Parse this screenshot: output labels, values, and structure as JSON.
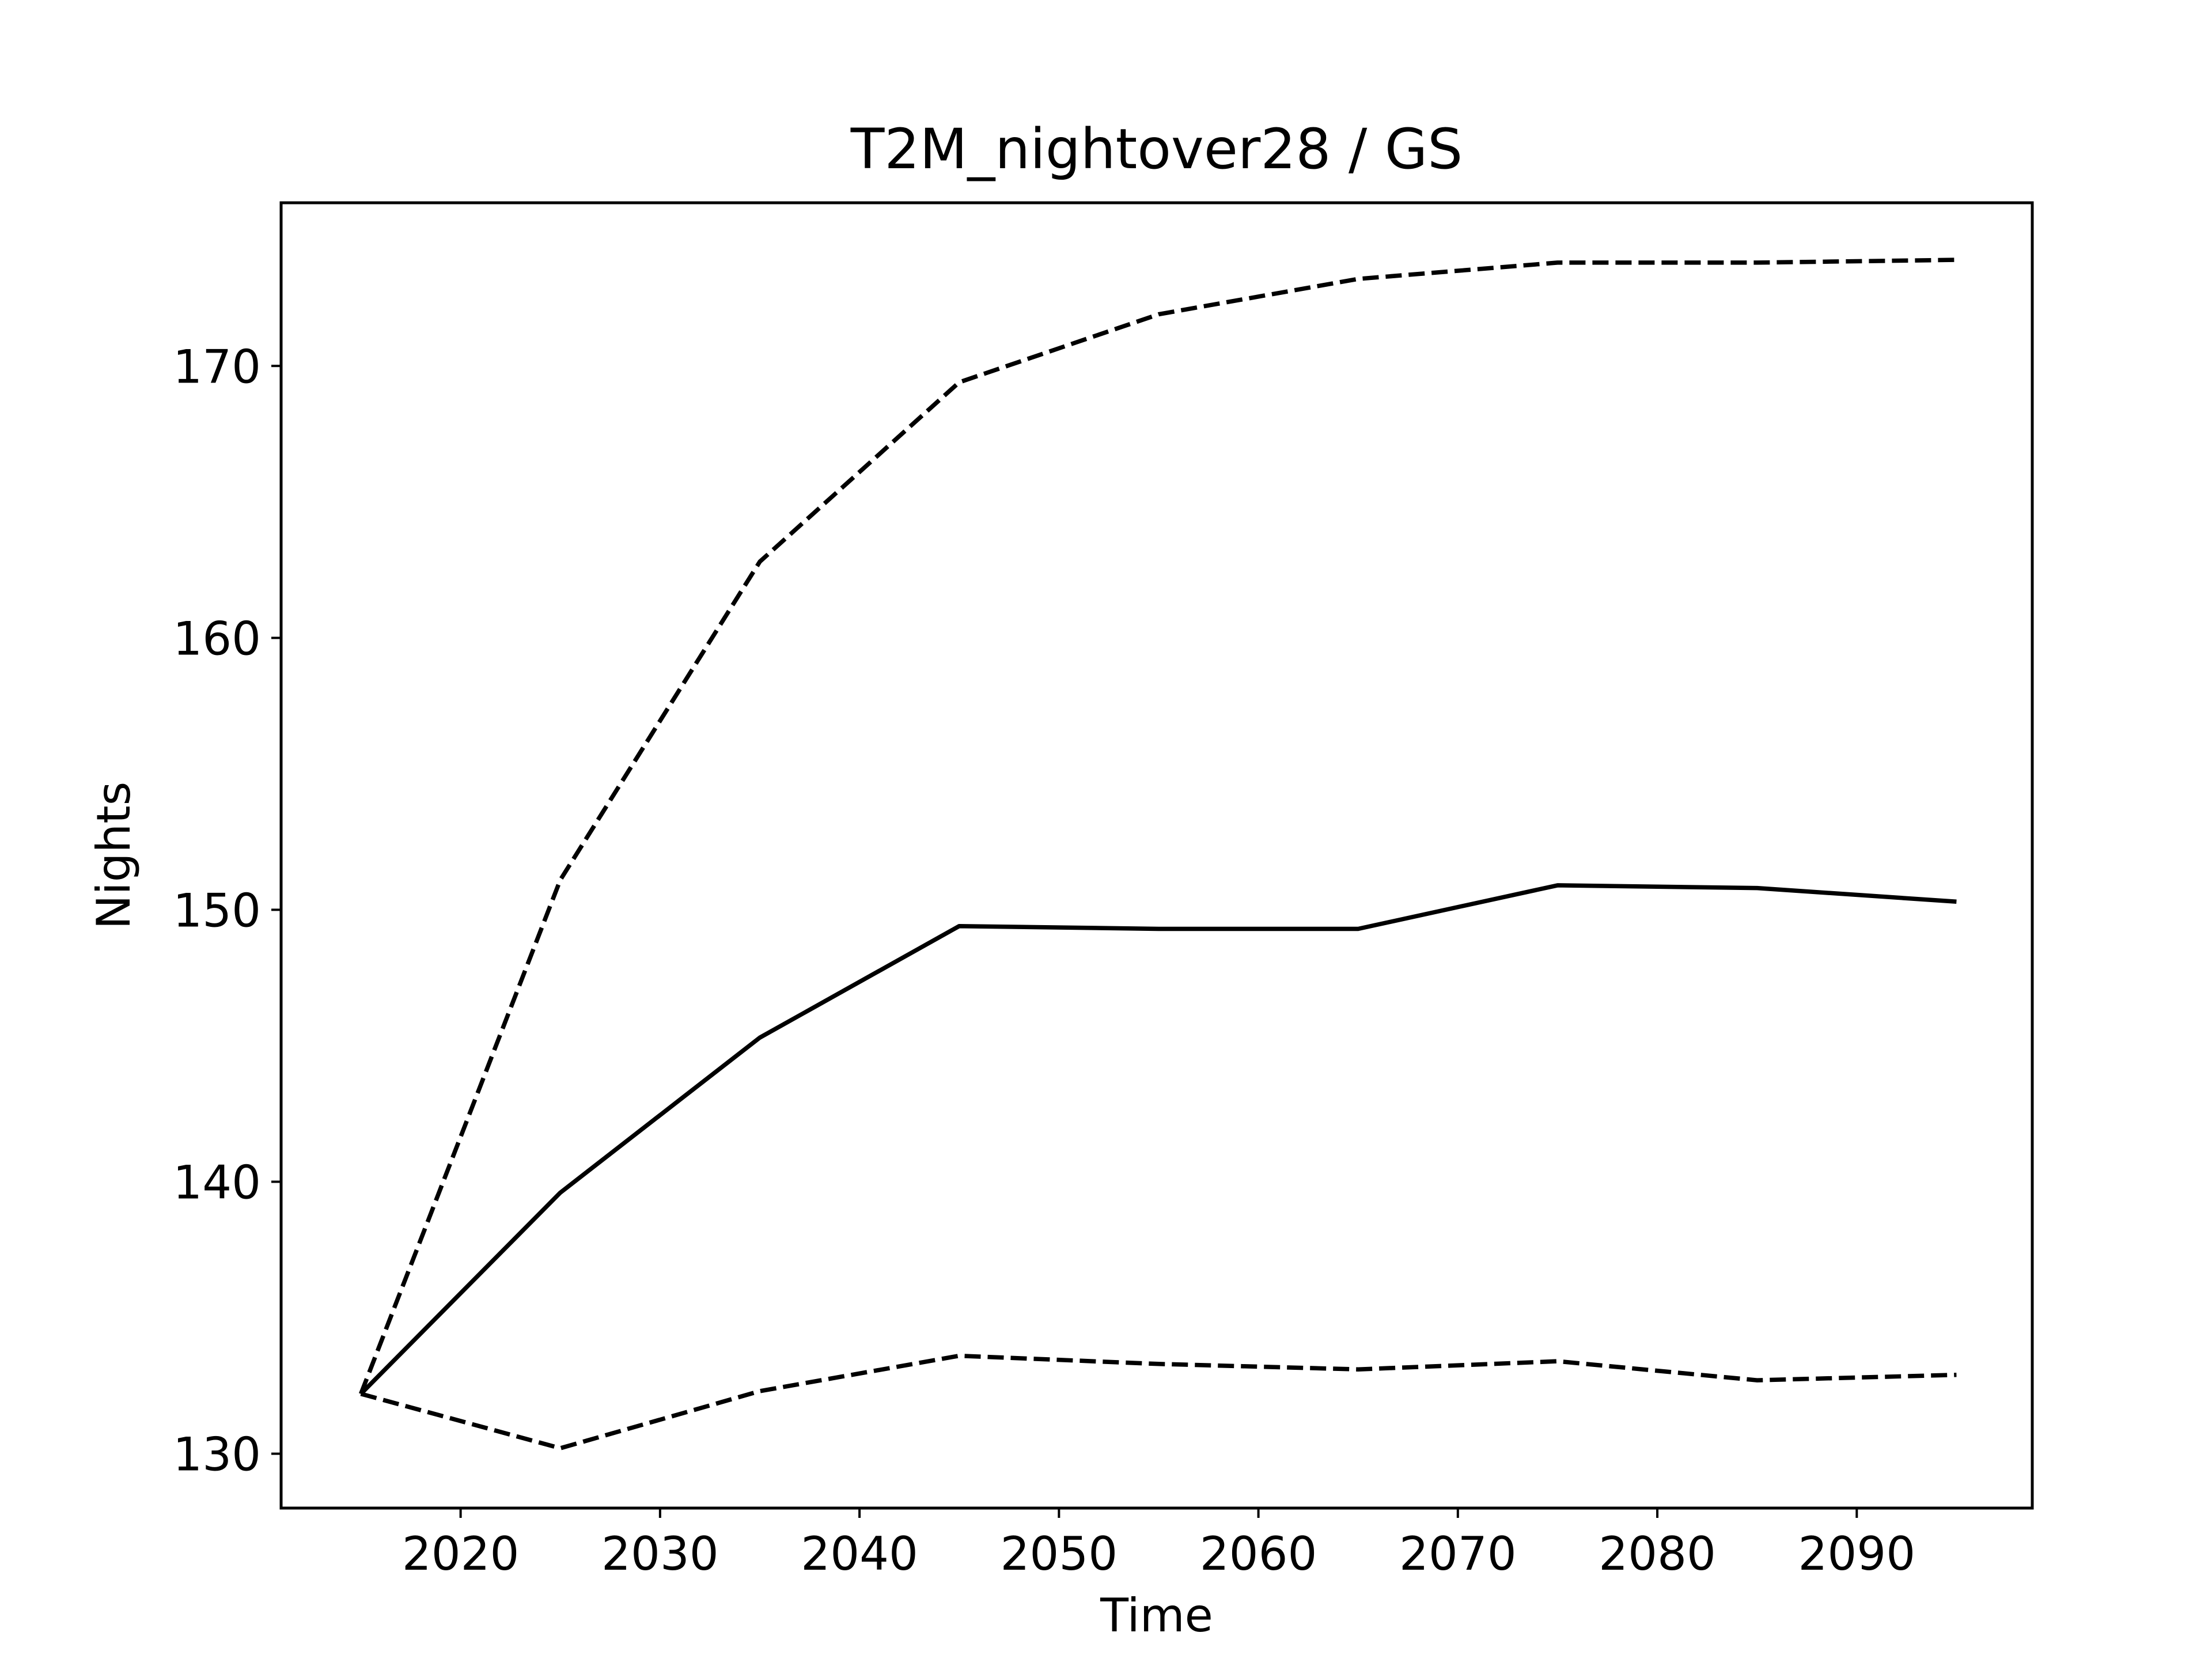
{
  "chart_data": {
    "type": "line",
    "title": "T2M_nightover28 / GS",
    "xlabel": "Time",
    "ylabel": "Nights",
    "xlim": [
      2011,
      2098.8
    ],
    "ylim": [
      128.0,
      176.0
    ],
    "x_ticks": [
      2020,
      2030,
      2040,
      2050,
      2060,
      2070,
      2080,
      2090
    ],
    "y_ticks": [
      130,
      140,
      150,
      160,
      170
    ],
    "grid": false,
    "legend": "none",
    "x": [
      2015,
      2025,
      2035,
      2045,
      2055,
      2065,
      2075,
      2085,
      2095
    ],
    "series": [
      {
        "style": "solid",
        "color": "#000000",
        "values": [
          132.2,
          139.6,
          145.3,
          149.4,
          149.3,
          149.3,
          150.9,
          150.8,
          150.3
        ]
      },
      {
        "style": "dashed",
        "color": "#000000",
        "values": [
          132.2,
          151.1,
          162.8,
          169.4,
          171.9,
          173.2,
          173.8,
          173.8,
          173.9
        ]
      },
      {
        "style": "dashed",
        "color": "#000000",
        "values": [
          132.2,
          130.2,
          132.3,
          133.6,
          133.3,
          133.1,
          133.4,
          132.7,
          132.9
        ]
      }
    ]
  }
}
